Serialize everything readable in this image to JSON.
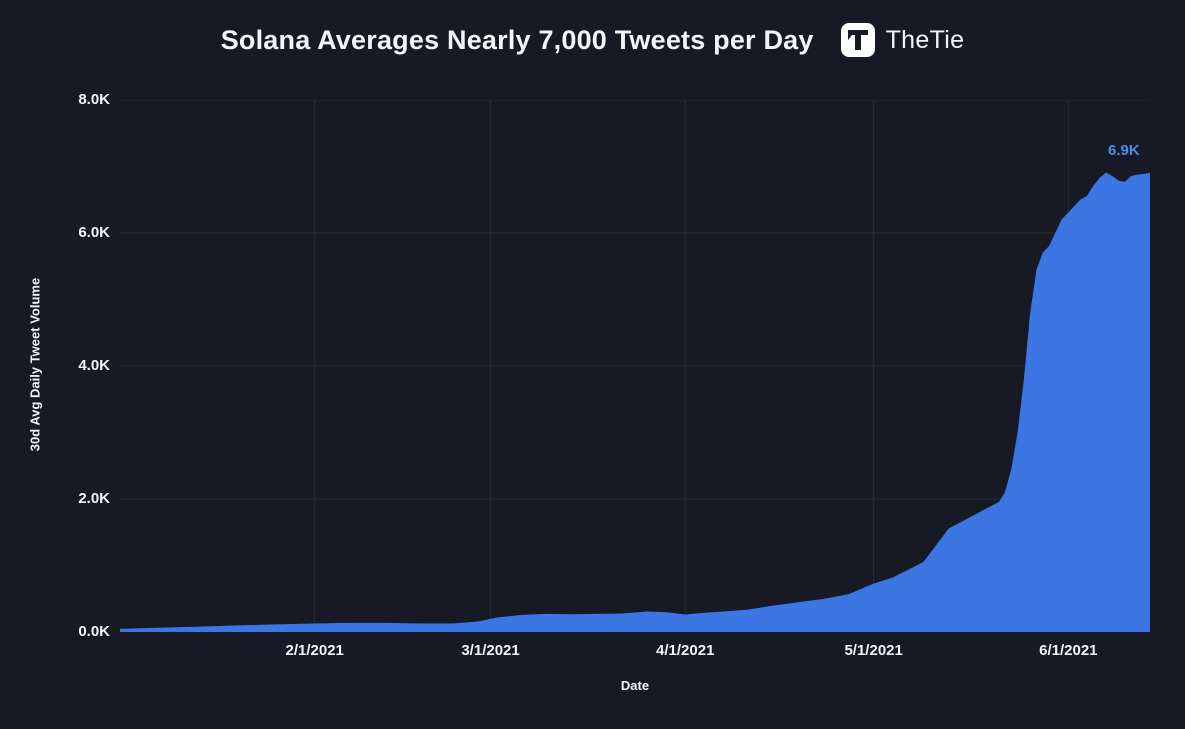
{
  "header": {
    "title": "Solana Averages Nearly 7,000 Tweets per Day",
    "logo_text": "TheTie"
  },
  "colors": {
    "background": "#171a25",
    "grid": "#262b39",
    "area_fill": "#3b76e3",
    "text": "#f2f4f8",
    "annotation": "#4d88ea"
  },
  "chart_data": {
    "type": "area",
    "title": "Solana Averages Nearly 7,000 Tweets per Day",
    "xlabel": "Date",
    "ylabel": "30d Avg Daily Tweet Volume",
    "ylim": [
      0,
      8000
    ],
    "x_domain_days": [
      0,
      164
    ],
    "grid": true,
    "legend": false,
    "y_ticks": [
      {
        "value": 0,
        "label": "0.0K"
      },
      {
        "value": 2000,
        "label": "2.0K"
      },
      {
        "value": 4000,
        "label": "4.0K"
      },
      {
        "value": 6000,
        "label": "6.0K"
      },
      {
        "value": 8000,
        "label": "8.0K"
      }
    ],
    "x_ticks": [
      {
        "day": 31,
        "label": "2/1/2021"
      },
      {
        "day": 59,
        "label": "3/1/2021"
      },
      {
        "day": 90,
        "label": "4/1/2021"
      },
      {
        "day": 120,
        "label": "5/1/2021"
      },
      {
        "day": 151,
        "label": "6/1/2021"
      }
    ],
    "annotation": {
      "label": "6.9K",
      "day": 164,
      "value": 6900
    },
    "series_name": "30d Avg Daily Tweet Volume",
    "points": [
      {
        "day": 0,
        "value": 40
      },
      {
        "day": 6,
        "value": 55
      },
      {
        "day": 12,
        "value": 70
      },
      {
        "day": 18,
        "value": 90
      },
      {
        "day": 24,
        "value": 105
      },
      {
        "day": 31,
        "value": 120
      },
      {
        "day": 36,
        "value": 130
      },
      {
        "day": 42,
        "value": 130
      },
      {
        "day": 48,
        "value": 120
      },
      {
        "day": 53,
        "value": 120
      },
      {
        "day": 57,
        "value": 150
      },
      {
        "day": 60,
        "value": 210
      },
      {
        "day": 64,
        "value": 250
      },
      {
        "day": 68,
        "value": 265
      },
      {
        "day": 72,
        "value": 260
      },
      {
        "day": 76,
        "value": 265
      },
      {
        "day": 80,
        "value": 270
      },
      {
        "day": 84,
        "value": 300
      },
      {
        "day": 87,
        "value": 290
      },
      {
        "day": 90,
        "value": 255
      },
      {
        "day": 93,
        "value": 280
      },
      {
        "day": 96,
        "value": 300
      },
      {
        "day": 100,
        "value": 330
      },
      {
        "day": 104,
        "value": 390
      },
      {
        "day": 108,
        "value": 440
      },
      {
        "day": 112,
        "value": 490
      },
      {
        "day": 116,
        "value": 560
      },
      {
        "day": 120,
        "value": 720
      },
      {
        "day": 123,
        "value": 810
      },
      {
        "day": 126,
        "value": 950
      },
      {
        "day": 128,
        "value": 1050
      },
      {
        "day": 130,
        "value": 1300
      },
      {
        "day": 132,
        "value": 1550
      },
      {
        "day": 134,
        "value": 1650
      },
      {
        "day": 136,
        "value": 1750
      },
      {
        "day": 138,
        "value": 1850
      },
      {
        "day": 140,
        "value": 1950
      },
      {
        "day": 141,
        "value": 2100
      },
      {
        "day": 142,
        "value": 2450
      },
      {
        "day": 143,
        "value": 3000
      },
      {
        "day": 144,
        "value": 3800
      },
      {
        "day": 145,
        "value": 4800
      },
      {
        "day": 146,
        "value": 5450
      },
      {
        "day": 147,
        "value": 5700
      },
      {
        "day": 148,
        "value": 5800
      },
      {
        "day": 149,
        "value": 6000
      },
      {
        "day": 150,
        "value": 6200
      },
      {
        "day": 151,
        "value": 6300
      },
      {
        "day": 152,
        "value": 6400
      },
      {
        "day": 153,
        "value": 6500
      },
      {
        "day": 154,
        "value": 6550
      },
      {
        "day": 155,
        "value": 6700
      },
      {
        "day": 156,
        "value": 6820
      },
      {
        "day": 157,
        "value": 6900
      },
      {
        "day": 158,
        "value": 6850
      },
      {
        "day": 159,
        "value": 6780
      },
      {
        "day": 160,
        "value": 6760
      },
      {
        "day": 161,
        "value": 6850
      },
      {
        "day": 162,
        "value": 6870
      },
      {
        "day": 163,
        "value": 6880
      },
      {
        "day": 164,
        "value": 6900
      }
    ]
  }
}
